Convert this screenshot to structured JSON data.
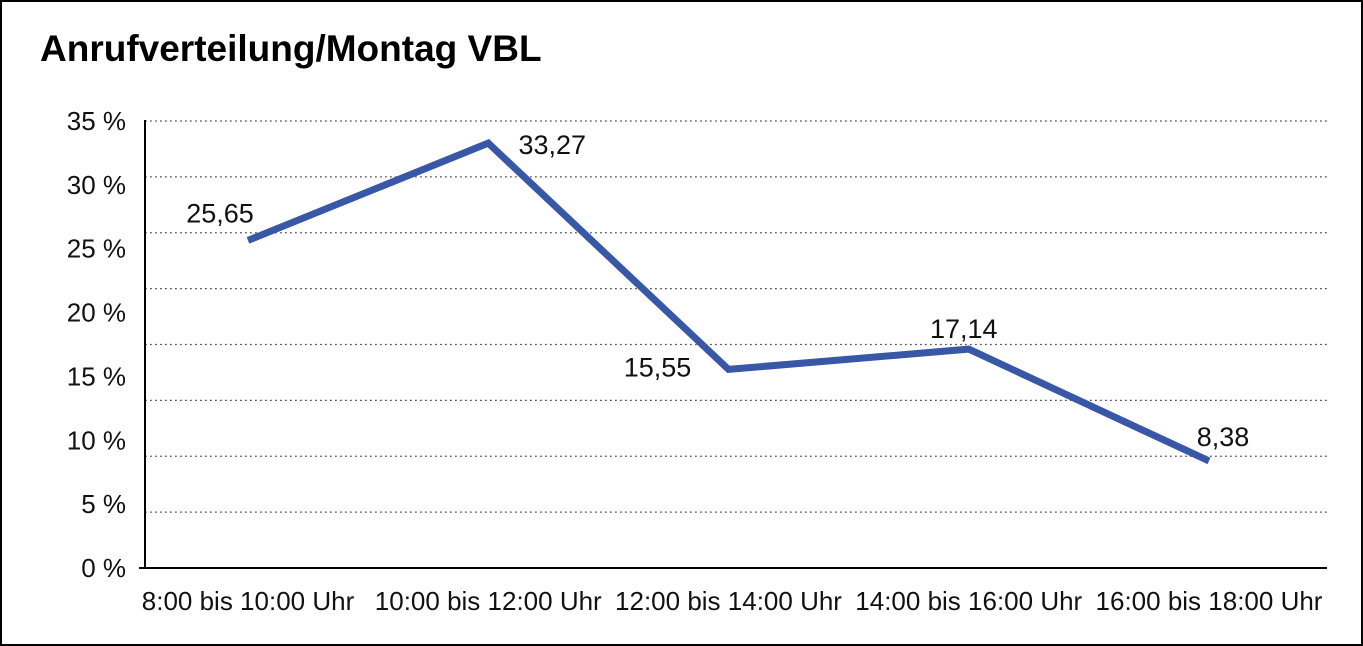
{
  "window": {
    "background_color": "#ffffff",
    "border_color": "#000000"
  },
  "chart_data": {
    "type": "line",
    "title": "Anrufverteilung/Montag VBL",
    "categories": [
      "8:00 bis 10:00 Uhr",
      "10:00 bis 12:00 Uhr",
      "12:00 bis 14:00 Uhr",
      "14:00 bis 16:00 Uhr",
      "16:00 bis 18:00 Uhr"
    ],
    "values": [
      25.65,
      33.27,
      15.55,
      17.14,
      8.38
    ],
    "point_labels": [
      "25,65",
      "33,27",
      "15,55",
      "17,14",
      "8,38"
    ],
    "y_ticks_top_to_bottom": [
      "35 %",
      "30 %",
      "25 %",
      "20 %",
      "15 %",
      "10 %",
      "5 %",
      "0 %"
    ],
    "ylim": [
      0,
      35
    ],
    "xlabel": "",
    "ylabel": "",
    "legend": "none",
    "grid": "horizontal dotted lines",
    "line_color": "#3857A6",
    "axis_color": "#000000",
    "gridline_color": "#555555",
    "text_color": "#111111"
  }
}
